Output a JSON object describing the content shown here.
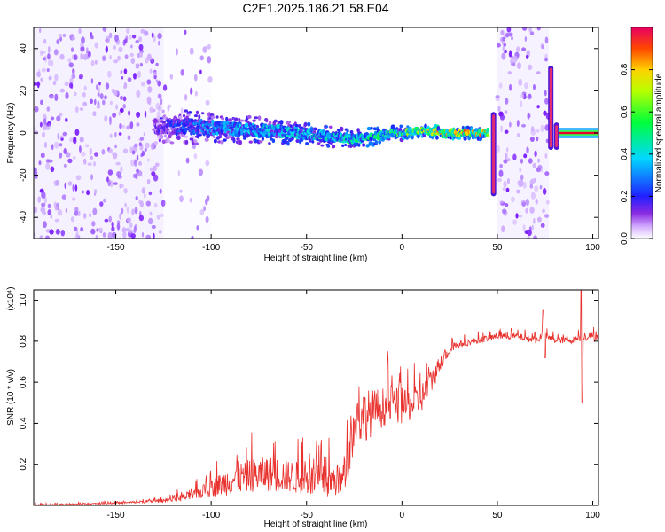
{
  "title": "C2E1.2025.186.21.58.E04",
  "colorbar": {
    "label": "Normalized spectral amplitude",
    "ticks": [
      "0.0",
      "0.2",
      "0.4",
      "0.6",
      "0.8"
    ],
    "tick_values": [
      0.0,
      0.2,
      0.4,
      0.6,
      0.8
    ],
    "range": [
      0,
      1
    ]
  },
  "chart_data": [
    {
      "type": "heatmap",
      "xlabel": "Height of straight line (km)",
      "ylabel": "Frequency (Hz)",
      "xlim": [
        -193,
        103
      ],
      "ylim": [
        -50,
        50
      ],
      "xticks": [
        "-150",
        "-100",
        "-50",
        "0",
        "50",
        "100"
      ],
      "xtick_values": [
        -150,
        -100,
        -50,
        0,
        50,
        100
      ],
      "yticks": [
        "-40",
        "-20",
        "0",
        "20",
        "40"
      ],
      "ytick_values": [
        -40,
        -20,
        0,
        20,
        40
      ],
      "colormap": "rainbow (white-violet-blue-cyan-green-yellow-red)",
      "ridge": {
        "x": [
          -130,
          -110,
          -90,
          -70,
          -50,
          -35,
          -25,
          -10,
          0,
          10,
          25,
          45
        ],
        "y": [
          3,
          3,
          2,
          1,
          0,
          -2,
          -3,
          -1,
          0,
          1,
          0,
          0
        ],
        "peak_amplitude_at_x": [
          -130,
          -110,
          -90,
          -70,
          -50,
          -35,
          -25,
          -10,
          0,
          10,
          25,
          45
        ],
        "peak_amplitude": [
          0.15,
          0.35,
          0.4,
          0.45,
          0.45,
          0.5,
          0.55,
          0.6,
          0.7,
          0.8,
          0.95,
          0.9
        ]
      },
      "broadband_noise_regions": [
        {
          "x_from": -193,
          "x_to": -125,
          "density": 0.85
        },
        {
          "x_from": -125,
          "x_to": -100,
          "density": 0.25
        },
        {
          "x_from": 50,
          "x_to": 77,
          "density": 0.8
        }
      ],
      "transients": [
        {
          "x": 48,
          "y_from": -30,
          "y_to": 10
        },
        {
          "x": 78,
          "y_from": -8,
          "y_to": 32
        },
        {
          "x": 81,
          "y_from": -8,
          "y_to": 5
        }
      ],
      "late_band": {
        "x_from": 82,
        "x_to": 103,
        "y": 0,
        "amplitude": 0.85
      },
      "grid": false
    },
    {
      "type": "line",
      "xlabel": "Height of straight line (km)",
      "ylabel": "SNR (10 * v/v)",
      "y_multiplier": "(x10⁴)",
      "xlim": [
        -193,
        103
      ],
      "ylim": [
        0,
        1.05
      ],
      "xticks": [
        "-150",
        "-100",
        "-50",
        "0",
        "50",
        "100"
      ],
      "xtick_values": [
        -150,
        -100,
        -50,
        0,
        50,
        100
      ],
      "yticks": [
        "0.2",
        "0.4",
        "0.6",
        "0.8",
        "1.0"
      ],
      "ytick_values": [
        0.2,
        0.4,
        0.6,
        0.8,
        1.0
      ],
      "color": "#e8302c",
      "grid": false,
      "series": [
        {
          "x": [
            -193,
            -150,
            -125,
            -110,
            -100,
            -90,
            -80,
            -70,
            -60,
            -50,
            -40,
            -30,
            -25,
            -20,
            -15,
            -10,
            -5,
            0,
            5,
            10,
            15,
            20,
            25,
            30,
            40,
            50,
            60,
            70,
            75,
            80,
            90,
            95,
            100,
            103
          ],
          "values": [
            0.0,
            0.01,
            0.02,
            0.04,
            0.07,
            0.1,
            0.12,
            0.13,
            0.12,
            0.1,
            0.09,
            0.1,
            0.35,
            0.4,
            0.42,
            0.45,
            0.47,
            0.45,
            0.47,
            0.5,
            0.58,
            0.68,
            0.75,
            0.78,
            0.8,
            0.82,
            0.82,
            0.8,
            0.82,
            0.8,
            0.8,
            0.82,
            0.81,
            0.82
          ],
          "noise_amplitude": [
            0.004,
            0.005,
            0.01,
            0.03,
            0.05,
            0.09,
            0.1,
            0.11,
            0.1,
            0.1,
            0.1,
            0.1,
            0.14,
            0.16,
            0.14,
            0.12,
            0.12,
            0.1,
            0.1,
            0.09,
            0.08,
            0.05,
            0.03,
            0.02,
            0.02,
            0.02,
            0.02,
            0.02,
            0.02,
            0.02,
            0.02,
            0.03,
            0.03,
            0.02
          ]
        }
      ],
      "spikes": [
        {
          "x": 74,
          "value": 0.95
        },
        {
          "x": 75,
          "value": 0.72
        },
        {
          "x": 94,
          "value": 1.05
        },
        {
          "x": 94.5,
          "value": 0.5
        }
      ]
    }
  ]
}
